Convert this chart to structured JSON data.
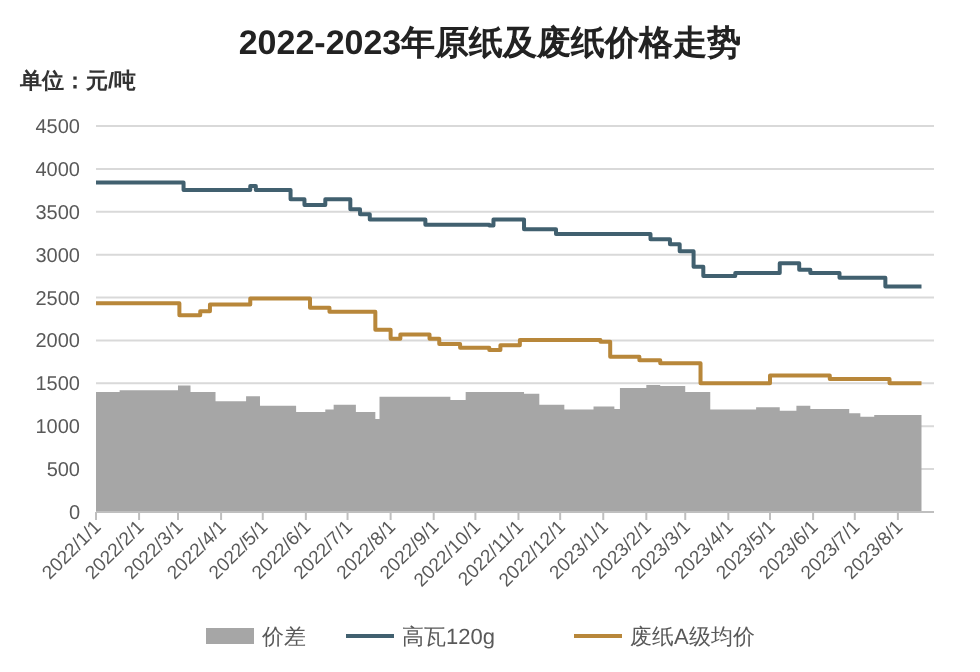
{
  "chart_data": {
    "type": "step",
    "title": "2022-2023年原纸及废纸价格走势",
    "ylabel": "单位：元/吨",
    "xlim": [
      "2022-01-01",
      "2023-08-27"
    ],
    "xticks": [
      {
        "value": "2022-01-01",
        "label": "2022/1/1"
      },
      {
        "value": "2022-02-01",
        "label": "2022/2/1"
      },
      {
        "value": "2022-03-01",
        "label": "2022/3/1"
      },
      {
        "value": "2022-04-01",
        "label": "2022/4/1"
      },
      {
        "value": "2022-05-01",
        "label": "2022/5/1"
      },
      {
        "value": "2022-06-01",
        "label": "2022/6/1"
      },
      {
        "value": "2022-07-01",
        "label": "2022/7/1"
      },
      {
        "value": "2022-08-01",
        "label": "2022/8/1"
      },
      {
        "value": "2022-09-01",
        "label": "2022/9/1"
      },
      {
        "value": "2022-10-01",
        "label": "2022/10/1"
      },
      {
        "value": "2022-11-01",
        "label": "2022/11/1"
      },
      {
        "value": "2022-12-01",
        "label": "2022/12/1"
      },
      {
        "value": "2023-01-01",
        "label": "2023/1/1"
      },
      {
        "value": "2023-02-01",
        "label": "2023/2/1"
      },
      {
        "value": "2023-03-01",
        "label": "2023/3/1"
      },
      {
        "value": "2023-04-01",
        "label": "2023/4/1"
      },
      {
        "value": "2023-05-01",
        "label": "2023/5/1"
      },
      {
        "value": "2023-06-01",
        "label": "2023/6/1"
      },
      {
        "value": "2023-07-01",
        "label": "2023/7/1"
      },
      {
        "value": "2023-08-01",
        "label": "2023/8/1"
      }
    ],
    "ylim": [
      0,
      4500
    ],
    "yticks": [
      0,
      500,
      1000,
      1500,
      2000,
      2500,
      3000,
      3500,
      4000,
      4500
    ],
    "grid": "y",
    "legend": "bottom",
    "series": [
      {
        "name": "价差",
        "type": "area",
        "color": "#a6a6a6",
        "x": [
          "2022-01-01",
          "2022-01-18",
          "2022-03-01",
          "2022-03-10",
          "2022-03-28",
          "2022-04-19",
          "2022-04-29",
          "2022-05-25",
          "2022-06-15",
          "2022-06-21",
          "2022-07-07",
          "2022-07-21",
          "2022-07-24",
          "2022-09-13",
          "2022-09-24",
          "2022-11-05",
          "2022-11-16",
          "2022-12-04",
          "2022-12-25",
          "2023-01-09",
          "2023-01-13",
          "2023-02-01",
          "2023-02-11",
          "2023-03-01",
          "2023-03-19",
          "2023-04-21",
          "2023-05-08",
          "2023-05-20",
          "2023-05-30",
          "2023-06-27",
          "2023-07-05",
          "2023-07-15",
          "2023-08-18"
        ],
        "values": [
          1400,
          1420,
          1475,
          1400,
          1290,
          1350,
          1240,
          1165,
          1195,
          1250,
          1165,
          1085,
          1345,
          1305,
          1400,
          1380,
          1250,
          1195,
          1230,
          1200,
          1445,
          1480,
          1470,
          1400,
          1195,
          1220,
          1180,
          1240,
          1200,
          1150,
          1110,
          1130,
          1130
        ]
      },
      {
        "name": "高瓦120g",
        "color": "#41606f",
        "x": [
          "2022-01-01",
          "2022-03-05",
          "2022-04-22",
          "2022-04-26",
          "2022-05-21",
          "2022-05-31",
          "2022-06-15",
          "2022-07-03",
          "2022-07-10",
          "2022-07-17",
          "2022-08-26",
          "2022-10-11",
          "2022-10-14",
          "2022-11-05",
          "2022-11-28",
          "2023-02-04",
          "2023-02-18",
          "2023-02-25",
          "2023-03-07",
          "2023-03-14",
          "2023-04-06",
          "2023-05-08",
          "2023-05-22",
          "2023-05-30",
          "2023-06-20",
          "2023-07-23",
          "2023-08-18"
        ],
        "values": [
          3840,
          3755,
          3800,
          3755,
          3645,
          3580,
          3645,
          3530,
          3470,
          3410,
          3350,
          3340,
          3410,
          3295,
          3240,
          3180,
          3120,
          3040,
          2860,
          2750,
          2785,
          2900,
          2825,
          2785,
          2730,
          2630,
          2630
        ]
      },
      {
        "name": "废纸A级均价",
        "color": "#b8873a",
        "x": [
          "2022-01-01",
          "2022-03-02",
          "2022-03-17",
          "2022-03-24",
          "2022-04-22",
          "2022-06-04",
          "2022-06-18",
          "2022-07-21",
          "2022-08-01",
          "2022-08-08",
          "2022-08-29",
          "2022-09-05",
          "2022-09-20",
          "2022-10-11",
          "2022-10-19",
          "2022-11-02",
          "2022-12-30",
          "2023-01-06",
          "2023-01-27",
          "2023-02-11",
          "2023-03-12",
          "2023-05-01",
          "2023-06-13",
          "2023-07-26",
          "2023-08-18"
        ],
        "values": [
          2435,
          2295,
          2340,
          2420,
          2490,
          2380,
          2335,
          2125,
          2020,
          2070,
          2020,
          1960,
          1915,
          1890,
          1945,
          2005,
          1985,
          1810,
          1770,
          1735,
          1500,
          1590,
          1550,
          1500,
          1500
        ]
      }
    ]
  }
}
